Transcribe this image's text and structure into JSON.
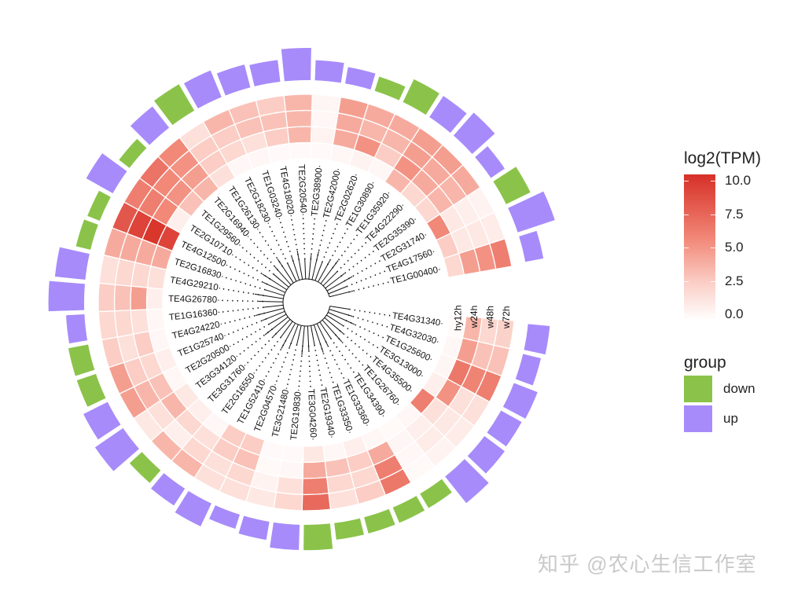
{
  "chart_data": {
    "type": "heatmap",
    "subtype": "circular heatmap with phylogenetic tree and group bar track",
    "title": "",
    "columns": [
      "hy12h",
      "w24h",
      "w48h",
      "w72h"
    ],
    "genes": [
      {
        "id": "TE4G31340",
        "values": [
          0.3,
          4.0,
          2.5,
          2.8
        ],
        "group": "up",
        "bar": 0.45
      },
      {
        "id": "TE4G32030",
        "values": [
          0.5,
          5.0,
          3.5,
          3.5
        ],
        "group": "up",
        "bar": 0.35
      },
      {
        "id": "TE1G25600",
        "values": [
          0.6,
          6.8,
          6.2,
          6.5
        ],
        "group": "up",
        "bar": 0.55
      },
      {
        "id": "TE3G13000",
        "values": [
          1.0,
          5.5,
          2.0,
          2.0
        ],
        "group": "up",
        "bar": 0.5
      },
      {
        "id": "TE4G35500",
        "values": [
          6.5,
          2.0,
          1.5,
          1.2
        ],
        "group": "up",
        "bar": 0.55
      },
      {
        "id": "TE1G26760",
        "values": [
          0.5,
          1.0,
          1.2,
          0.8
        ],
        "group": "up",
        "bar": 0.8
      },
      {
        "id": "TE1G34390",
        "values": [
          0.4,
          0.6,
          0.5,
          0.4
        ],
        "group": "down",
        "bar": 0.3
      },
      {
        "id": "TE1G33360",
        "values": [
          0.5,
          4.5,
          6.5,
          6.8
        ],
        "group": "down",
        "bar": 0.3
      },
      {
        "id": "TE1G33350",
        "values": [
          1.0,
          3.0,
          2.5,
          3.0
        ],
        "group": "down",
        "bar": 0.3
      },
      {
        "id": "TE2G19340",
        "values": [
          0.5,
          3.5,
          2.5,
          2.0
        ],
        "group": "down",
        "bar": 0.3
      },
      {
        "id": "TE3G04260",
        "values": [
          1.5,
          4.5,
          6.5,
          7.5
        ],
        "group": "down",
        "bar": 0.55
      },
      {
        "id": "TE2G19830",
        "values": [
          0.3,
          0.5,
          2.0,
          2.5
        ],
        "group": "up",
        "bar": 0.55
      },
      {
        "id": "TE3G21480",
        "values": [
          0.3,
          0.4,
          0.8,
          1.5
        ],
        "group": "up",
        "bar": 0.35
      },
      {
        "id": "TE2G04570",
        "values": [
          3.0,
          3.5,
          2.5,
          2.0
        ],
        "group": "up",
        "bar": 0.25
      },
      {
        "id": "TE1G52410",
        "values": [
          3.0,
          3.0,
          2.0,
          2.0
        ],
        "group": "up",
        "bar": 0.55
      },
      {
        "id": "TE2G16550",
        "values": [
          0.5,
          2.0,
          2.5,
          4.0
        ],
        "group": "up",
        "bar": 0.4
      },
      {
        "id": "TE3G31760",
        "values": [
          1.0,
          2.5,
          1.0,
          4.0
        ],
        "group": "down",
        "bar": 0.3
      },
      {
        "id": "TE3G34120",
        "values": [
          1.5,
          4.0,
          2.0,
          1.5
        ],
        "group": "up",
        "bar": 0.8
      },
      {
        "id": "TE2G20500",
        "values": [
          0.5,
          3.5,
          4.0,
          5.0
        ],
        "group": "up",
        "bar": 0.6
      },
      {
        "id": "TE1G25740",
        "values": [
          1.0,
          2.5,
          3.0,
          5.0
        ],
        "group": "down",
        "bar": 0.4
      },
      {
        "id": "TE4G24220",
        "values": [
          0.5,
          3.0,
          2.0,
          3.0
        ],
        "group": "down",
        "bar": 0.4
      },
      {
        "id": "TE1G16360",
        "values": [
          0.5,
          2.0,
          2.5,
          2.5
        ],
        "group": "up",
        "bar": 0.35
      },
      {
        "id": "TE4G26780",
        "values": [
          1.0,
          5.0,
          3.5,
          3.0
        ],
        "group": "up",
        "bar": 0.85
      },
      {
        "id": "TE4G29210",
        "values": [
          2.0,
          2.5,
          2.5,
          2.0
        ],
        "group": "up",
        "bar": 0.7
      },
      {
        "id": "TE2G16830",
        "values": [
          4.5,
          4.5,
          4.5,
          4.5
        ],
        "group": "down",
        "bar": 0.25
      },
      {
        "id": "TE4G12500",
        "values": [
          9.5,
          10.2,
          9.5,
          8.5
        ],
        "group": "down",
        "bar": 0.2
      },
      {
        "id": "TE2G10710",
        "values": [
          1.0,
          6.0,
          6.5,
          6.5
        ],
        "group": "up",
        "bar": 0.7
      },
      {
        "id": "TE1G29560",
        "values": [
          3.5,
          5.5,
          6.0,
          7.0
        ],
        "group": "down",
        "bar": 0.2
      },
      {
        "id": "TE2G16940",
        "values": [
          4.0,
          5.0,
          5.5,
          6.0
        ],
        "group": "up",
        "bar": 0.6
      },
      {
        "id": "TE1G26130",
        "values": [
          2.0,
          3.0,
          3.0,
          2.0
        ],
        "group": "down",
        "bar": 0.7
      },
      {
        "id": "TE2G18230",
        "values": [
          0.5,
          2.5,
          3.0,
          4.0
        ],
        "group": "up",
        "bar": 0.65
      },
      {
        "id": "TE1G03240",
        "values": [
          0.5,
          2.0,
          3.5,
          3.5
        ],
        "group": "up",
        "bar": 0.5
      },
      {
        "id": "TE4G18020",
        "values": [
          0.3,
          3.0,
          3.5,
          3.0
        ],
        "group": "up",
        "bar": 0.45
      },
      {
        "id": "TE2G20540",
        "values": [
          0.3,
          4.0,
          4.0,
          4.0
        ],
        "group": "up",
        "bar": 0.75
      },
      {
        "id": "TE2G38900",
        "values": [
          0.3,
          0.8,
          0.5,
          0.6
        ],
        "group": "up",
        "bar": 0.4
      },
      {
        "id": "TE2G42000",
        "values": [
          0.5,
          4.5,
          4.5,
          5.0
        ],
        "group": "up",
        "bar": 0.3
      },
      {
        "id": "TE2G02620",
        "values": [
          0.8,
          5.5,
          4.0,
          4.5
        ],
        "group": "down",
        "bar": 0.25
      },
      {
        "id": "TE1G30890",
        "values": [
          0.5,
          3.0,
          4.0,
          4.5
        ],
        "group": "down",
        "bar": 0.55
      },
      {
        "id": "TE1G35920",
        "values": [
          4.0,
          5.5,
          5.0,
          5.0
        ],
        "group": "up",
        "bar": 0.55
      },
      {
        "id": "TE4G22290",
        "values": [
          2.5,
          4.5,
          4.5,
          5.0
        ],
        "group": "up",
        "bar": 0.7
      },
      {
        "id": "TE2G35390",
        "values": [
          2.5,
          4.0,
          4.0,
          4.5
        ],
        "group": "up",
        "bar": 0.3
      },
      {
        "id": "TE2G31740",
        "values": [
          6.0,
          1.5,
          1.0,
          0.8
        ],
        "group": "down",
        "bar": 0.6
      },
      {
        "id": "TE4G17560",
        "values": [
          3.0,
          1.5,
          1.5,
          1.2
        ],
        "group": "up",
        "bar": 0.95
      },
      {
        "id": "TE1G00400",
        "values": [
          2.5,
          5.0,
          5.5,
          6.5
        ],
        "group": "up",
        "bar": 0.35
      }
    ],
    "legend": {
      "colorbar_title": "log2(TPM)",
      "colorbar_ticks": [
        "10.0",
        "7.5",
        "5.0",
        "2.5",
        "0.0"
      ],
      "colorbar_range": [
        0,
        10.5
      ],
      "group_title": "group",
      "groups": [
        {
          "label": "down",
          "color": "#8bc34a"
        },
        {
          "label": "up",
          "color": "#a88bfa"
        }
      ]
    },
    "colors": {
      "low": "#ffffff",
      "high": "#d73027",
      "down": "#8bc34a",
      "up": "#a78bfa"
    }
  },
  "watermark": "知乎 @农心生信工作室"
}
